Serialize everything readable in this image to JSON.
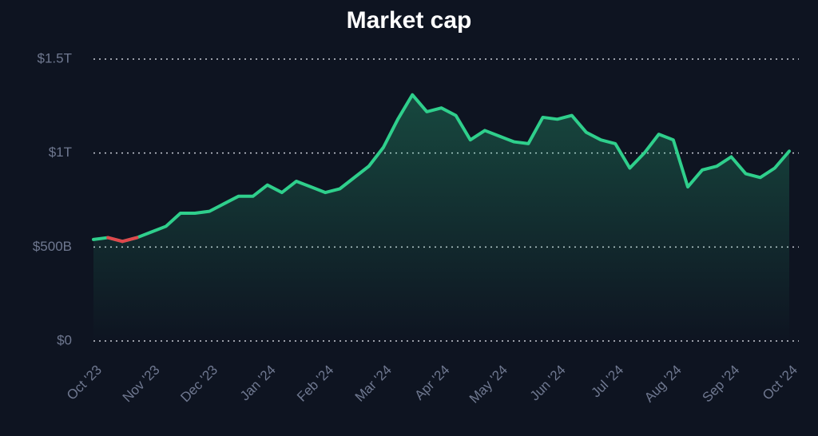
{
  "chart_data": {
    "type": "line",
    "title": "Market cap",
    "categories": [
      "Oct '23",
      null,
      null,
      null,
      "Nov '23",
      null,
      null,
      null,
      "Dec '23",
      null,
      null,
      null,
      "Jan '24",
      null,
      null,
      null,
      "Feb '24",
      null,
      null,
      null,
      "Mar '24",
      null,
      null,
      null,
      "Apr '24",
      null,
      null,
      null,
      "May '24",
      null,
      null,
      null,
      "Jun '24",
      null,
      null,
      null,
      "Jul '24",
      null,
      null,
      null,
      "Aug '24",
      null,
      null,
      null,
      "Sep '24",
      null,
      null,
      null,
      "Oct '24"
    ],
    "values": [
      0.54,
      0.55,
      0.53,
      0.55,
      0.58,
      0.61,
      0.68,
      0.68,
      0.69,
      0.73,
      0.77,
      0.77,
      0.83,
      0.79,
      0.85,
      0.82,
      0.79,
      0.81,
      0.87,
      0.93,
      1.03,
      1.18,
      1.31,
      1.22,
      1.24,
      1.2,
      1.07,
      1.12,
      1.09,
      1.06,
      1.05,
      1.19,
      1.18,
      1.2,
      1.11,
      1.07,
      1.05,
      0.92,
      1.0,
      1.1,
      1.07,
      0.82,
      0.91,
      0.93,
      0.98,
      0.89,
      0.87,
      0.92,
      1.01
    ],
    "color": "#2fcf8c",
    "down_color": "#e0474c",
    "ylim": [
      0,
      1.5
    ],
    "yticks": [
      {
        "value": 0,
        "label": "$0"
      },
      {
        "value": 0.5,
        "label": "$500B"
      },
      {
        "value": 1,
        "label": "$1T"
      },
      {
        "value": 1.5,
        "label": "$1.5T"
      }
    ],
    "grid": true
  }
}
